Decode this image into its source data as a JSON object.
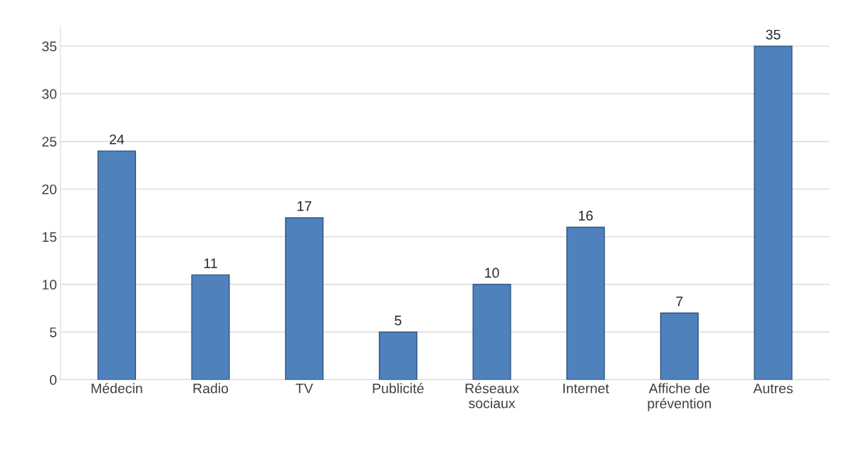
{
  "chart_data": {
    "type": "bar",
    "categories": [
      "Médecin",
      "Radio",
      "TV",
      "Publicité",
      "Réseaux\nsociaux",
      "Internet",
      "Affiche de\nprévention",
      "Autres"
    ],
    "values": [
      24,
      11,
      17,
      5,
      10,
      16,
      7,
      35
    ],
    "color": "#4f81bd",
    "ylim": [
      0,
      37
    ],
    "yticks": [
      0,
      5,
      10,
      15,
      20,
      25,
      30,
      35
    ],
    "grid": "y",
    "data_labels": true
  }
}
